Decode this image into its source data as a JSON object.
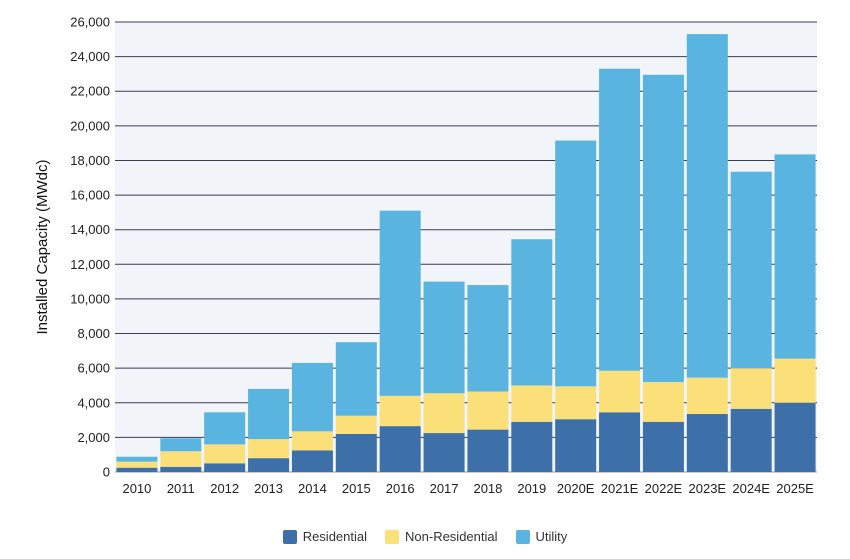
{
  "chart_data": {
    "type": "bar",
    "stacked": true,
    "ylabel": "Installed Capacity (MWdc)",
    "ylim": [
      0,
      26000
    ],
    "yticks": [
      0,
      2000,
      4000,
      6000,
      8000,
      10000,
      12000,
      14000,
      16000,
      18000,
      20000,
      22000,
      24000,
      26000
    ],
    "ytick_labels": [
      "0",
      "2,000",
      "4,000",
      "6,000",
      "8,000",
      "10,000",
      "12,000",
      "14,000",
      "16,000",
      "18,000",
      "20,000",
      "22,000",
      "24,000",
      "26,000"
    ],
    "grid": true,
    "legend_position": "bottom",
    "categories": [
      "2010",
      "2011",
      "2012",
      "2013",
      "2014",
      "2015",
      "2016",
      "2017",
      "2018",
      "2019",
      "2020E",
      "2021E",
      "2022E",
      "2023E",
      "2024E",
      "2025E"
    ],
    "series": [
      {
        "name": "Residential",
        "color": "#3d6fa8",
        "values": [
          250,
          300,
          500,
          800,
          1250,
          2200,
          2650,
          2250,
          2450,
          2900,
          3050,
          3450,
          2900,
          3350,
          3650,
          4000
        ]
      },
      {
        "name": "Non-Residential",
        "color": "#fbe07a",
        "values": [
          350,
          900,
          1100,
          1100,
          1100,
          1050,
          1750,
          2300,
          2200,
          2100,
          1900,
          2400,
          2300,
          2100,
          2350,
          2550
        ]
      },
      {
        "name": "Utility",
        "color": "#5ab4e0",
        "values": [
          280,
          750,
          1850,
          2900,
          3950,
          4250,
          10700,
          6450,
          6150,
          8450,
          14200,
          17450,
          17750,
          19850,
          11350,
          11800
        ]
      }
    ]
  }
}
